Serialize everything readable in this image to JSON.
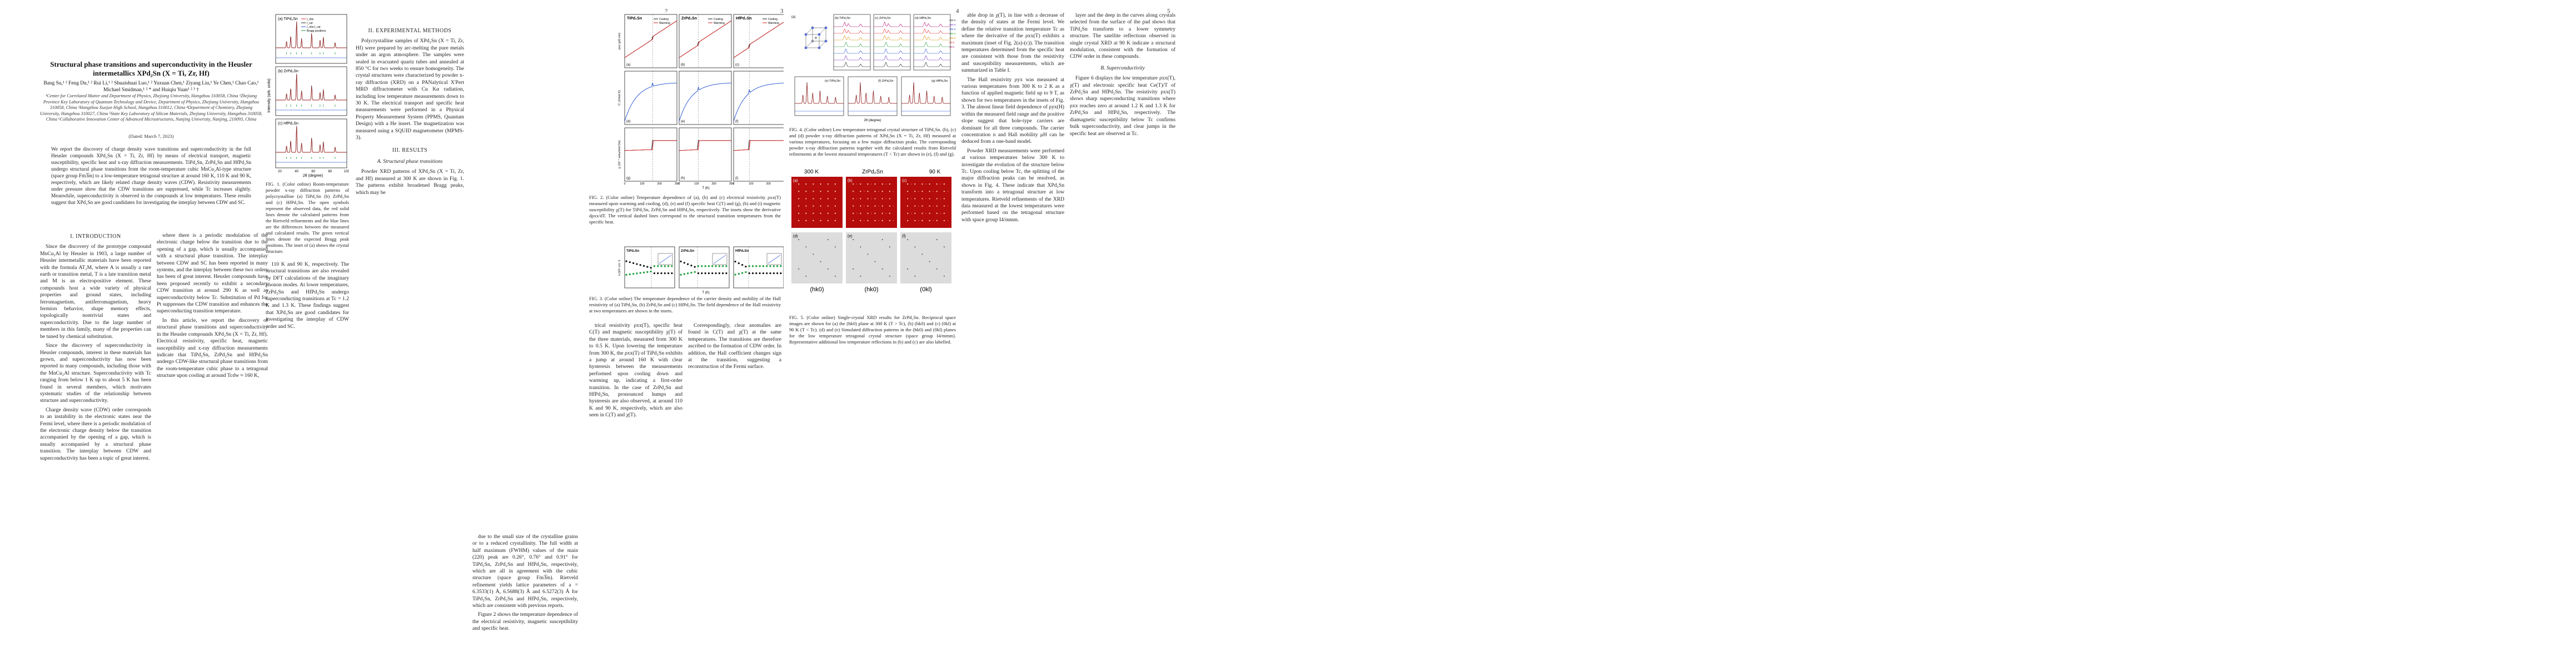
{
  "arxiv_id": "arXiv:2303.02908v1  [cond-mat.supr-con]  6 Mar 2023",
  "page_numbers": [
    "2",
    "3",
    "4",
    "5"
  ],
  "title": "Structural phase transitions and superconductivity in the Heusler intermetallics XPd₂Sn (X = Ti, Zr, Hf)",
  "authors": "Bang Su,¹ ² Feng Du,¹ ² Rui Li,¹ ² Shuaishuai Luo,¹ ² Yuxuan Chen,¹ Ziyang Liu,¹ Ye Chen,¹ Chao Cao,¹ Michael Smidman,¹ ² * and Huiqiu Yuan¹ ² ³ †",
  "affiliations": "¹Center for Correlated Matter and Department of Physics, Zhejiang University, Hangzhou 310058, China  ²Zhejiang Province Key Laboratory of Quantum Technology and Device, Department of Physics, Zhejiang University, Hangzhou 310058, China  ³Hangzhou Xuejun High School, Hangzhou 310012, China  ⁴Department of Chemistry, Zhejiang University, Hangzhou 310027, China  ⁵State Key Laboratory of Silicon Materials, Zhejiang University, Hangzhou 310058, China  ⁶Collaborative Innovation Center of Advanced Microstructures, Nanjing University, Nanjing, 210093, China",
  "date": "(Dated: March 7, 2023)",
  "abstract": "We report the discovery of charge density wave transitions and superconductivity in the full Heusler compounds XPd₂Sn (X = Ti, Zr, Hf) by means of electrical transport, magnetic susceptibility, specific heat and x-ray diffraction measurements. TiPd₂Sn, ZrPd₂Sn and HfPd₂Sn undergo structural phase transitions from the room-temperature cubic MnCu₂Al-type structure (space group Fm3̅m) to a low-temperature tetragonal structure at around 160 K, 110 K and 90 K, respectively, which are likely related charge density waves (CDW). Resistivity measurements under pressure show that the CDW transitions are suppressed, while Tc increases slightly. Meanwhile, superconductivity is observed in the compounds at low temperatures. These results suggest that XPd₂Sn are good candidates for investigating the interplay between CDW and SC.",
  "sections": {
    "intro_heading": "I.  INTRODUCTION",
    "methods_heading": "II.  EXPERIMENTAL METHODS",
    "results_heading": "III.  RESULTS",
    "results_sub_a": "A.  Structural phase transitions",
    "results_sub_b": "B.  Superconductivity"
  },
  "page1": {
    "intro_p1": "Since the discovery of the prototype compound MnCu₂Al by Heusler in 1903, a large number of Heusler intermetallic materials have been reported with the formula AT₂M, where A is usually a rare earth or transition metal, T is a late transition metal and M is an electropositive element. These compounds host a wide variety of physical properties and ground states, including ferromagnetism, antiferromagnetism, heavy fermion behavior, shape memory effects, topologically nontrivial states and superconductivity. Due to the large number of members in this family, many of the properties can be tuned by chemical substitution.",
    "intro_p2": "Since the discovery of superconductivity in Heusler compounds, interest in these materials has grown, and superconductivity has now been reported in many compounds, including those with the MnCu₂Al structure. Superconductivity with Tc ranging from below 1 K up to about 5 K has been found in several members, which motivates systematic studies of the relationship between structure and superconductivity.",
    "intro_p3": "Charge density wave (CDW) order corresponds to an instability in the electronic states near the Fermi level, where there is a periodic modulation of the electronic charge density below the transition accompanied by the opening of a gap, which is usually accompanied by a structural phase transition. The interplay between CDW and superconductivity has been a topic of great interest.",
    "col2_p1": "where there is a periodic modulation of the electronic charge below the transition due to the opening of a gap, which is usually accompanied with a structural phase transition. The interplay between CDW and SC has been reported in many systems, and the interplay between these two orders has been of great interest. Heusler compounds have been proposed recently to exhibit a secondary CDW transition at around 290 K as well as superconductivity below Tc. Substitution of Pd for Pt suppresses the CDW transition and enhances the superconducting transition temperature.",
    "col2_p2": "In this article, we report the discovery of structural phase transitions and superconductivity in the Heusler compounds XPd₂Sn (X = Ti, Zr, Hf). Electrical resistivity, specific heat, magnetic susceptibility and x-ray diffraction measurements indicate that TiPd₂Sn, ZrPd₂Sn and HfPd₂Sn undergo CDW-like structural phase transitions from the room-temperature cubic phase to a tetragonal structure upon cooling at around Tcdw ≈ 160 K,"
  },
  "page2": {
    "col1_p1": "110 K and 90 K, respectively. The structural transitions are also revealed by DFT calculations of the imaginary phonon modes. At lower temperatures, ZrPd₂Sn and HfPd₂Sn undergo superconducting transitions at Tc = 1.2 K and 1.3 K. These findings suggest that XPd₂Sn are good candidates for investigating the interplay of CDW order and SC.",
    "col1_p2": "Polycrystalline samples of XPd₂Sn (X = Ti, Zr, Hf) were prepared by arc-melting the pure metals under an argon atmosphere. The samples were sealed in evacuated quartz tubes and annealed at 850 °C for two weeks to ensure homogeneity. The crystal structures were characterized by powder x-ray diffraction (XRD) on a PANalytical X'Pert MRD diffractometer with Cu Kα radiation, including low temperature measurements down to 30 K. The electrical transport and specific heat measurements were performed in a Physical Property Measurement System (PPMS, Quantum Design) with a He insert. The magnetization was measured using a SQUID magnetometer (MPMS-3).",
    "col1_p3": "Powder XRD patterns of XPd₂Sn (X = Ti, Zr, and Hf) measured at 300 K are shown in Fig. 1. The patterns exhibit broadened Bragg peaks, which may be",
    "col2_p1": "due to the small size of the crystalline grains or to a reduced crystallinity. The full width at half maximum (FWHM) values of the main (220) peak are 0.26°, 0.76° and 0.91° for TiPd₂Sn, ZrPd₂Sn and HfPd₂Sn, respectively, which are all in agreement with the cubic structure (space group Fm3̅m). Rietveld refinement yields lattice parameters of a = 6.3533(1) Å, 6.5688(3) Å and 6.5272(3) Å for TiPd₂Sn, ZrPd₂Sn and HfPd₂Sn, respectively, which are consistent with previous reports.",
    "col2_p2": "Figure 2 shows the temperature dependence of the electrical resistivity, magnetic susceptibility and specific heat.",
    "col3_p1": "trical resistivity ρxx(T), specific heat C(T) and magnetic susceptibility χ(T) of the three materials, measured from 300 K to 0.5 K. Upon lowering the temperature from 300 K, the ρxx(T) of TiPd₂Sn exhibits a jump at around 160 K with clear hysteresis between the measurements performed upon cooling down and warming up, indicating a first-order transition. In the case of ZrPd₂Sn and HfPd₂Sn, pronounced humps and hysteresis are also observed, at around 110 K and 90 K, respectively, which are also seen in C(T) and χ(T).",
    "col3_p2": "Correspondingly, clear anomalies are found in C(T) and χ(T) at the same temperatures. The transitions are therefore ascribed to the formation of CDW order. In addition, the Hall coefficient changes sign at the transition, suggesting a reconstruction of the Fermi surface."
  },
  "page3": {
    "col1_p1": "able drop in χ(T), in line with a decrease of the density of states at the Fermi level. We define the relative transition temperature Tc as where the derivative of the ρxx(T) exhibits a maximum (inset of Fig. 2(a)-(c)). The transition temperatures determined from the specific heat are consistent with those from the resistivity and susceptibility measurements, which are summarized in Table I.",
    "col1_p2": "The Hall resistivity ρyx was measured at various temperatures from 300 K to 2 K as a function of applied magnetic field up to 9 T, as shown for two temperatures in the insets of Fig. 3. The almost linear field dependence of ρyx(H) within the measured field range and the positive slope suggest that hole-type carriers are dominant for all three compounds. The carrier concentration n and Hall mobility μH can be deduced from a one-band model.",
    "col1_p3": "Powder XRD measurements were performed at various temperatures below 300 K to investigate the evolution of the structure below Tc. Upon cooling below Tc, the splitting of the major diffraction peaks can be resolved, as shown in Fig. 4. These indicate that XPd₂Sn transform into a tetragonal structure at low temperatures. Rietveld refinements of the XRD data measured at the lowest temperatures were performed based on the tetragonal structure with space group I4/mmm.",
    "col2_p1": "layer and the deep in the curves along crystals selected from the surface of the pad shows that TiPd₂Sn transform to a lower symmetry structure. The satellite reflections observed in single crystal XRD at 90 K indicate a structural modulation, consistent with the formation of CDW order in these compounds.",
    "col2_p2": "Figure 6 displays the low temperature ρxx(T), χ(T) and electronic specific heat Ce(T)/T of ZrPd₂Sn and HfPd₂Sn. The resistivity ρxx(T) shows sharp superconducting transitions where ρxx reaches zero at around 1.2 K and 1.3 K for ZrPd₂Sn and HfPd₂Sn, respectively. The diamagnetic susceptibility below Tc confirms bulk superconductivity, and clear jumps in the specific heat are observed at Tc."
  },
  "captions": {
    "fig1": "FIG. 1. (Color online) Room-temperature powder x-ray diffraction patterns of polycrystalline (a) TiPd₂Sn (b) ZrPd₂Sn and (c) HfPd₂Sn. The open symbols represent the observed data, the red solid lines denote the calculated patterns from the Rietveld refinements and the blue lines are the differences between the measured and calculated results. The green vertical lines denote the expected Bragg peak positions. The inset of (a) shows the crystal structure.",
    "fig2": "FIG. 2. (Color online) Temperature dependence of (a), (b) and (c) electrical resistivity ρxx(T) measured upon warming and cooling, (d), (e) and (f) specific heat C(T) and (g), (h) and (i) magnetic susceptibility χ(T) for TiPd₂Sn, ZrPd₂Sn and HfPd₂Sn, respectively. The insets show the derivative dρxx/dT. The vertical dashed lines correspond to the structural transition temperatures from the specific heat.",
    "fig3": "FIG. 3. (Color online) The temperature dependence of the carrier density and mobility of the Hall resistivity of (a) TiPd₂Sn, (b) ZrPd₂Sn and (c) HfPd₂Sn. The field dependence of the Hall resistivity at two temperatures are shown in the insets.",
    "fig4": "FIG. 4. (Color online) Low temperature tetragonal crystal structure of TiPd₂Sn. (b), (c) and (d) powder x-ray diffraction patterns of XPd₂Sn (X = Ti, Zr, Hf) measured at various temperatures, focusing on a few major diffraction peaks. The corresponding powder x-ray diffraction patterns together with the calculated results from Rietveld refinements at the lowest measured temperatures (T < Tc) are shown in (e), (f) and (g).",
    "fig5": "FIG. 5. (Color online) Single-crystal XRD results for ZrPd₂Sn. Reciprocal space images are shown for (a) the (hk0) plane at 300 K (T > Tc), (b) (hk0) and (c) (0kl) at 90 K (T < Tc). (d) and (e) Simulated diffraction patterns in the (hk0) and (0kl) planes for the low temperature tetragonal crystal structure (space group I4/mmm). Representative additional low temperature reflections in (b) and (c) are also labelled."
  },
  "fig1_labels": {
    "panels": [
      "(a) TiPd₂Sn",
      "(b) ZrPd₂Sn",
      "(c) HfPd₂Sn"
    ],
    "legend": [
      "I_obs",
      "I_cal",
      "I_obs-I_cal",
      "Bragg positions"
    ],
    "ylabel": "Intensity (arb. units)",
    "xlabel": "2θ (degree)",
    "xticks": [
      "20",
      "40",
      "60",
      "80",
      "100"
    ]
  },
  "fig2_labels": {
    "columns": [
      "TiPd₂Sn",
      "ZrPd₂Sn",
      "HfPd₂Sn"
    ],
    "legend": [
      "Cooling",
      "Warming"
    ],
    "ylabels": [
      "ρxx (μΩ cm)",
      "C (J/mol K)",
      "χ (10⁻⁴ emu/mol Oe)"
    ],
    "xlabel": "T (K)",
    "xticks": [
      "0",
      "100",
      "200",
      "300"
    ],
    "panel_letters": [
      "(a)",
      "(b)",
      "(c)",
      "(d)",
      "(e)",
      "(f)",
      "(g)",
      "(h)",
      "(i)"
    ]
  },
  "fig3_labels": {
    "columns": [
      "TiPd₂Sn",
      "ZrPd₂Sn",
      "HfPd₂Sn"
    ],
    "ylabel_left": "n (10²¹ cm⁻³)",
    "ylabel_right": "μH (cm²/V s)",
    "xlabel": "T (K)"
  },
  "fig4_labels": {
    "panels": [
      "(a)",
      "(b) TiPd₂Sn",
      "(c) ZrPd₂Sn",
      "(d) HfPd₂Sn",
      "(e) TiPd₂Sn",
      "(f) ZrPd₂Sn",
      "(g) HfPd₂Sn"
    ],
    "xlabel": "2θ (degree)",
    "ylabel": "Intensity (arb. units)",
    "legend": [
      "I_obs",
      "I_cal",
      "I_obs-I_cal",
      "Bragg positions"
    ],
    "temps": [
      "300 K",
      "250 K",
      "200 K",
      "150 K",
      "100 K",
      "50 K",
      "30 K"
    ]
  },
  "fig5_labels": {
    "top_left": "300 K",
    "top_center": "ZrPd₂Sn",
    "top_right": "90 K",
    "panels": [
      "(a)",
      "(b)",
      "(c)",
      "(d)",
      "(e)",
      "(f)"
    ],
    "bottom_labels": [
      "(hk0)",
      "(hk0)",
      "(0kl)"
    ]
  },
  "colors": {
    "obs": "#e02020",
    "cal": "#222222",
    "diff": "#1f4fd0",
    "bragg": "#1e9e3a",
    "warming": "#e02020",
    "cooling": "#111111",
    "xrd_bg": "#b50c0c"
  }
}
